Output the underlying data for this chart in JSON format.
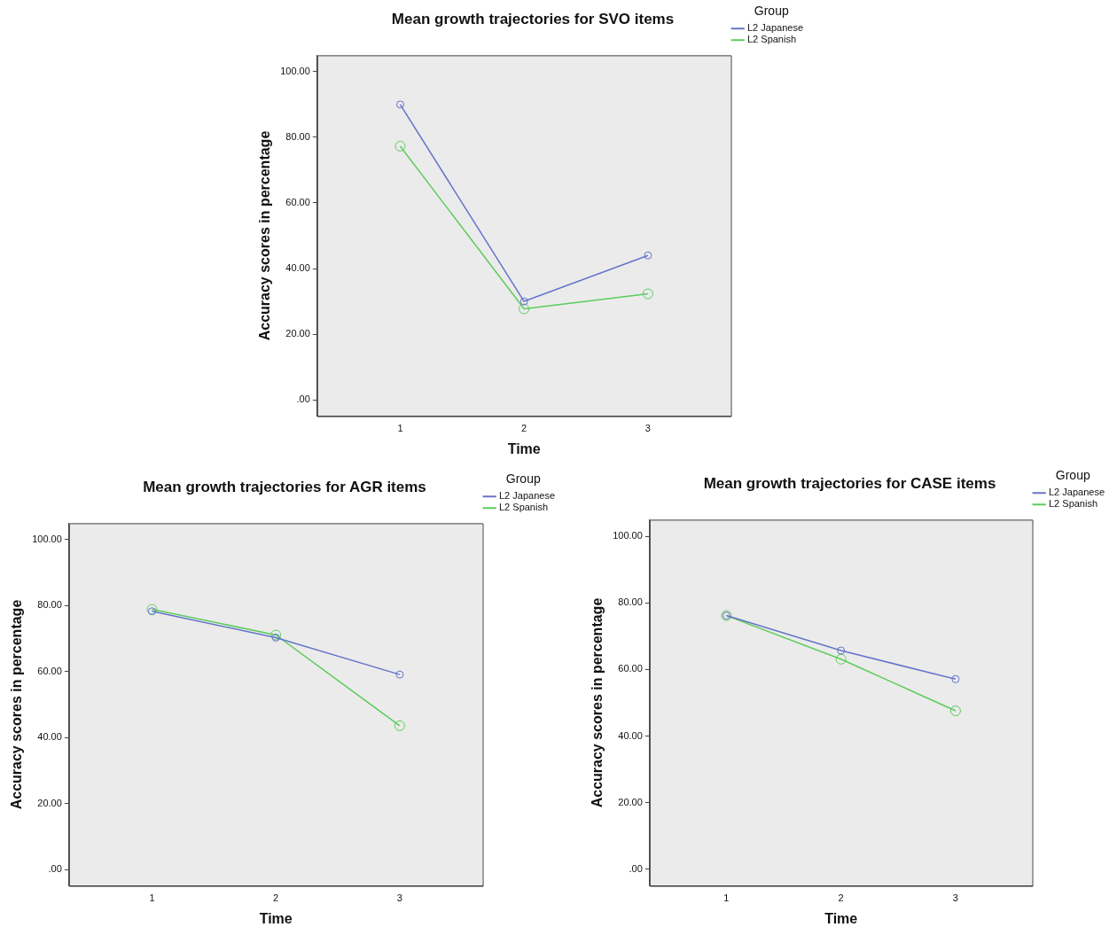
{
  "chart_data": [
    {
      "type": "line",
      "title": "Mean growth trajectories for SVO items",
      "xlabel": "Time",
      "ylabel": "Accuracy scores in percentage",
      "legend_title": "Group",
      "legend": "top right",
      "grid": false,
      "marker": "circle",
      "x": [
        1,
        2,
        3
      ],
      "xlim": [
        0.33,
        3.67
      ],
      "ylim": [
        -5,
        105
      ],
      "xticks": [
        1,
        2,
        3
      ],
      "yticks": [
        {
          "value": 0,
          "label": ".00"
        },
        {
          "value": 20,
          "label": "20.00"
        },
        {
          "value": 40,
          "label": "40.00"
        },
        {
          "value": 60,
          "label": "60.00"
        },
        {
          "value": 80,
          "label": "80.00"
        },
        {
          "value": 100,
          "label": "100.00"
        }
      ],
      "series": [
        {
          "name": "L2 Japanese",
          "color": "#6674c8",
          "values": [
            90,
            30,
            44
          ]
        },
        {
          "name": "L2 Spanish",
          "color": "#5ccc5c",
          "values": [
            77.3,
            27.7,
            32.3
          ]
        }
      ]
    },
    {
      "type": "line",
      "title": "Mean growth trajectories for AGR items",
      "xlabel": "Time",
      "ylabel": "Accuracy scores in percentage",
      "legend_title": "Group",
      "legend": "top right",
      "grid": false,
      "marker": "circle",
      "x": [
        1,
        2,
        3
      ],
      "xlim": [
        0.33,
        3.67
      ],
      "ylim": [
        -5,
        105
      ],
      "xticks": [
        1,
        2,
        3
      ],
      "yticks": [
        {
          "value": 0,
          "label": ".00"
        },
        {
          "value": 20,
          "label": "20.00"
        },
        {
          "value": 40,
          "label": "40.00"
        },
        {
          "value": 60,
          "label": "60.00"
        },
        {
          "value": 80,
          "label": "80.00"
        },
        {
          "value": 100,
          "label": "100.00"
        }
      ],
      "series": [
        {
          "name": "L2 Japanese",
          "color": "#6674c8",
          "values": [
            78.3,
            70.3,
            59.1
          ]
        },
        {
          "name": "L2 Spanish",
          "color": "#5ccc5c",
          "values": [
            78.9,
            71.1,
            43.6
          ]
        }
      ]
    },
    {
      "type": "line",
      "title": "Mean growth trajectories for CASE items",
      "xlabel": "Time",
      "ylabel": "Accuracy scores in percentage",
      "legend_title": "Group",
      "legend": "top right",
      "grid": false,
      "marker": "circle",
      "x": [
        1,
        2,
        3
      ],
      "xlim": [
        0.33,
        3.67
      ],
      "ylim": [
        -5,
        105
      ],
      "xticks": [
        1,
        2,
        3
      ],
      "yticks": [
        {
          "value": 0,
          "label": ".00"
        },
        {
          "value": 20,
          "label": "20.00"
        },
        {
          "value": 40,
          "label": "40.00"
        },
        {
          "value": 60,
          "label": "60.00"
        },
        {
          "value": 80,
          "label": "80.00"
        },
        {
          "value": 100,
          "label": "100.00"
        }
      ],
      "series": [
        {
          "name": "L2 Japanese",
          "color": "#6674c8",
          "values": [
            76.2,
            65.7,
            57.1
          ]
        },
        {
          "name": "L2 Spanish",
          "color": "#5ccc5c",
          "values": [
            76.2,
            63.1,
            47.6
          ]
        }
      ]
    }
  ]
}
